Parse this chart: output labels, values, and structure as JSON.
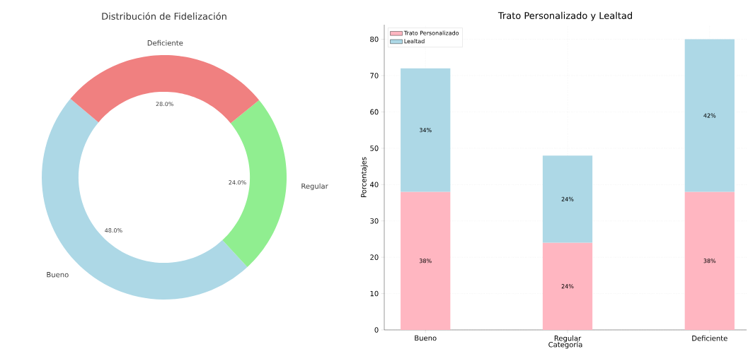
{
  "chart_data": [
    {
      "type": "donut",
      "title": "Distribución de Fidelización",
      "categories": [
        "Bueno",
        "Regular",
        "Deficiente"
      ],
      "values": [
        48,
        24,
        28
      ],
      "colors": [
        "#add8e6",
        "#90ee90",
        "#f08080"
      ],
      "value_labels": [
        "48.0%",
        "24.0%",
        "28.0%"
      ]
    },
    {
      "type": "bar",
      "title": "Trato Personalizado y Lealtad",
      "xlabel": "Categoría",
      "ylabel": "Porcentajes",
      "categories": [
        "Bueno",
        "Regular",
        "Deficiente"
      ],
      "stacked": true,
      "ylim": [
        0,
        84
      ],
      "yticks": [
        0,
        10,
        20,
        30,
        40,
        50,
        60,
        70,
        80
      ],
      "grid": true,
      "legend": "top left",
      "series": [
        {
          "name": "Trato Personalizado",
          "color": "#ffb6c1",
          "values": [
            38,
            24,
            38
          ],
          "value_labels": [
            "38%",
            "24%",
            "38%"
          ]
        },
        {
          "name": "Lealtad",
          "color": "#add8e6",
          "values": [
            34,
            24,
            42
          ],
          "value_labels": [
            "34%",
            "24%",
            "42%"
          ]
        }
      ]
    }
  ]
}
